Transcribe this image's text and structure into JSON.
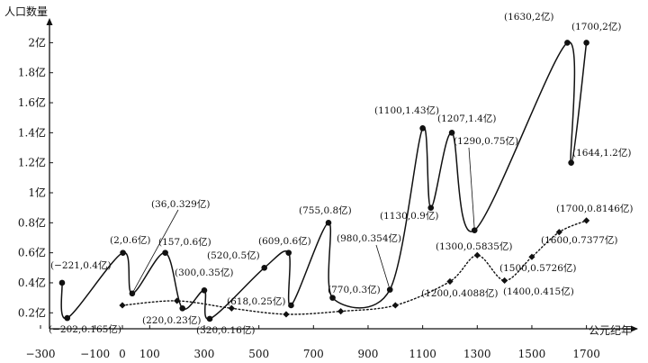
{
  "chart_data": {
    "type": "line",
    "ylabel": "人口数量",
    "xlabel": "公元纪年",
    "xlim": [
      -300,
      1780
    ],
    "ylim": [
      0.1,
      2.08
    ],
    "x_ticks": [
      -300,
      -100,
      0,
      100,
      300,
      500,
      700,
      900,
      1100,
      1300,
      1500,
      1700
    ],
    "x_tick_labels": [
      "−300",
      "−100",
      "0",
      "100",
      "300",
      "500",
      "700",
      "900",
      "1100",
      "1300",
      "1500",
      "1700"
    ],
    "y_ticks": [
      0.2,
      0.4,
      0.6,
      0.8,
      1.0,
      1.2,
      1.4,
      1.6,
      1.8,
      2.0
    ],
    "y_tick_labels": [
      "0.2亿",
      "0.4亿",
      "0.6亿",
      "0.8亿",
      "1亿",
      "1.2亿",
      "1.4亿",
      "1.6亿",
      "1.8亿",
      "2亿"
    ],
    "series": [
      {
        "style": "solid",
        "marker": "circle",
        "points": [
          {
            "x": -221,
            "y": 0.4,
            "label": "(−221,0.4亿)"
          },
          {
            "x": -202,
            "y": 0.165,
            "label": "(−202,0.165亿)"
          },
          {
            "x": 2,
            "y": 0.6,
            "label": "(2,0.6亿)"
          },
          {
            "x": 36,
            "y": 0.329,
            "label": "(36,0.329亿)"
          },
          {
            "x": 157,
            "y": 0.6,
            "label": "(157,0.6亿)"
          },
          {
            "x": 220,
            "y": 0.23,
            "label": "(220,0.23亿)"
          },
          {
            "x": 300,
            "y": 0.35,
            "label": "(300,0.35亿)"
          },
          {
            "x": 320,
            "y": 0.16,
            "label": "(320,0.16亿)"
          },
          {
            "x": 520,
            "y": 0.5,
            "label": "(520,0.5亿)"
          },
          {
            "x": 609,
            "y": 0.6,
            "label": "(609,0.6亿)"
          },
          {
            "x": 618,
            "y": 0.25,
            "label": "(618,0.25亿)"
          },
          {
            "x": 755,
            "y": 0.8,
            "label": "(755,0.8亿)"
          },
          {
            "x": 770,
            "y": 0.3,
            "label": "(770,0.3亿)"
          },
          {
            "x": 980,
            "y": 0.354,
            "label": "(980,0.354亿)"
          },
          {
            "x": 1100,
            "y": 1.43,
            "label": "(1100,1.43亿)"
          },
          {
            "x": 1130,
            "y": 0.9,
            "label": "(1130,0.9亿)"
          },
          {
            "x": 1207,
            "y": 1.4,
            "label": "(1207,1.4亿)"
          },
          {
            "x": 1290,
            "y": 0.75,
            "label": "(1290,0.75亿)"
          },
          {
            "x": 1630,
            "y": 2.0,
            "label": "(1630,2亿)"
          },
          {
            "x": 1644,
            "y": 1.2,
            "label": "(1644,1.2亿)"
          },
          {
            "x": 1700,
            "y": 2.0,
            "label": "(1700,2亿)"
          }
        ]
      },
      {
        "style": "dotted",
        "marker": "diamond",
        "points": [
          {
            "x": 0,
            "y": 0.25
          },
          {
            "x": 200,
            "y": 0.28
          },
          {
            "x": 400,
            "y": 0.23
          },
          {
            "x": 600,
            "y": 0.19
          },
          {
            "x": 800,
            "y": 0.21
          },
          {
            "x": 1000,
            "y": 0.25
          },
          {
            "x": 1200,
            "y": 0.4088,
            "label": "(1200,0.4088亿)"
          },
          {
            "x": 1300,
            "y": 0.5835,
            "label": "(1300,0.5835亿)"
          },
          {
            "x": 1400,
            "y": 0.415,
            "label": "(1400,0.415亿)"
          },
          {
            "x": 1500,
            "y": 0.5726,
            "label": "(1500,0.5726亿)"
          },
          {
            "x": 1600,
            "y": 0.7377,
            "label": "(1600,0.7377亿)"
          },
          {
            "x": 1700,
            "y": 0.8146,
            "label": "(1700,0.8146亿)"
          }
        ]
      }
    ]
  }
}
